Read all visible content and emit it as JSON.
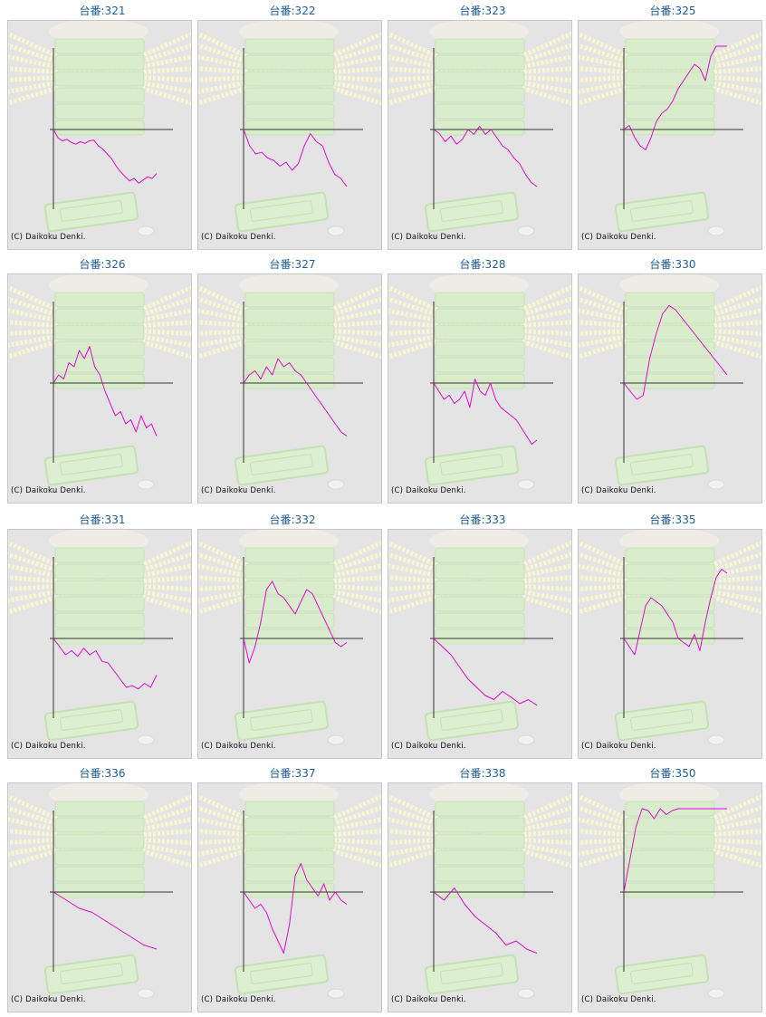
{
  "colors": {
    "line": "#e00bd0",
    "axis": "#333333",
    "label": "#1f5e96",
    "panel_bg": "#e4e4e4",
    "watermark": "#d7ecc9"
  },
  "copyright": "(C) Daikoku Denki.",
  "chart_data": [
    {
      "type": "line",
      "title": "台番:321",
      "series": [
        {
          "values": [
            0,
            -10,
            -14,
            -12,
            -16,
            -18,
            -15,
            -17,
            -14,
            -13,
            -20,
            -24,
            -30,
            -36,
            -45,
            -52,
            -58,
            -63,
            -60,
            -66,
            -62,
            -58,
            -60,
            -54
          ]
        }
      ]
    },
    {
      "type": "line",
      "title": "台番:322",
      "series": [
        {
          "values": [
            0,
            -20,
            -30,
            -28,
            -35,
            -38,
            -45,
            -40,
            -50,
            -42,
            -20,
            -5,
            -15,
            -20,
            -40,
            -55,
            -60,
            -70
          ]
        }
      ]
    },
    {
      "type": "line",
      "title": "台番:323",
      "series": [
        {
          "values": [
            0,
            -5,
            -15,
            -8,
            -18,
            -12,
            0,
            -6,
            4,
            -6,
            0,
            -10,
            -20,
            -25,
            -35,
            -42,
            -55,
            -65,
            -70
          ]
        }
      ]
    },
    {
      "type": "line",
      "title": "台番:325",
      "series": [
        {
          "values": [
            0,
            5,
            -10,
            -20,
            -25,
            -10,
            10,
            20,
            25,
            35,
            50,
            60,
            70,
            80,
            75,
            60,
            90,
            120,
            140,
            150
          ]
        }
      ]
    },
    {
      "type": "line",
      "title": "台番:326",
      "series": [
        {
          "values": [
            0,
            10,
            5,
            25,
            20,
            40,
            30,
            45,
            20,
            10,
            -10,
            -25,
            -40,
            -35,
            -50,
            -45,
            -60,
            -40,
            -55,
            -50,
            -65
          ]
        }
      ]
    },
    {
      "type": "line",
      "title": "台番:327",
      "series": [
        {
          "values": [
            0,
            10,
            15,
            5,
            20,
            10,
            30,
            20,
            25,
            15,
            10,
            0,
            -10,
            -20,
            -30,
            -40,
            -50,
            -60,
            -65
          ]
        }
      ]
    },
    {
      "type": "line",
      "title": "台番:328",
      "series": [
        {
          "values": [
            0,
            -10,
            -20,
            -15,
            -25,
            -20,
            -10,
            -30,
            5,
            -10,
            -15,
            0,
            -20,
            -30,
            -35,
            -40,
            -45,
            -55,
            -65,
            -75,
            -70
          ]
        }
      ]
    },
    {
      "type": "line",
      "title": "台番:330",
      "series": [
        {
          "values": [
            0,
            -10,
            -20,
            -15,
            30,
            60,
            85,
            95,
            90,
            80,
            70,
            60,
            50,
            40,
            30,
            20,
            10
          ]
        }
      ]
    },
    {
      "type": "line",
      "title": "台番:331",
      "series": [
        {
          "values": [
            0,
            -10,
            -20,
            -15,
            -22,
            -12,
            -20,
            -15,
            -28,
            -30,
            -40,
            -50,
            -60,
            -58,
            -62,
            -55,
            -60,
            -45
          ]
        }
      ]
    },
    {
      "type": "line",
      "title": "台番:332",
      "series": [
        {
          "values": [
            0,
            -30,
            -10,
            20,
            60,
            70,
            55,
            50,
            40,
            30,
            45,
            60,
            55,
            40,
            25,
            10,
            -5,
            -10,
            -5
          ]
        }
      ]
    },
    {
      "type": "line",
      "title": "台番:333",
      "series": [
        {
          "values": [
            0,
            -10,
            -20,
            -35,
            -50,
            -60,
            -70,
            -75,
            -65,
            -72,
            -80,
            -75,
            -82
          ]
        }
      ]
    },
    {
      "type": "line",
      "title": "台番:335",
      "series": [
        {
          "values": [
            0,
            -10,
            -20,
            10,
            40,
            50,
            45,
            40,
            30,
            20,
            0,
            -5,
            -10,
            5,
            -15,
            20,
            50,
            75,
            85,
            80
          ]
        }
      ]
    },
    {
      "type": "line",
      "title": "台番:336",
      "series": [
        {
          "values": [
            0,
            -10,
            -20,
            -25,
            -35,
            -45,
            -55,
            -65,
            -70
          ]
        }
      ]
    },
    {
      "type": "line",
      "title": "台番:337",
      "series": [
        {
          "values": [
            0,
            -10,
            -20,
            -15,
            -25,
            -45,
            -60,
            -75,
            -40,
            20,
            35,
            15,
            5,
            -5,
            10,
            -10,
            0,
            -10,
            -15
          ]
        }
      ]
    },
    {
      "type": "line",
      "title": "台番:338",
      "series": [
        {
          "values": [
            0,
            -10,
            5,
            -15,
            -30,
            -40,
            -50,
            -65,
            -60,
            -70,
            -75
          ]
        }
      ]
    },
    {
      "type": "line",
      "title": "台番:350",
      "series": [
        {
          "values": [
            0,
            40,
            80,
            110,
            100,
            90,
            110,
            95,
            100,
            105,
            110,
            115,
            120,
            130,
            130,
            115,
            105,
            110
          ]
        }
      ]
    }
  ]
}
